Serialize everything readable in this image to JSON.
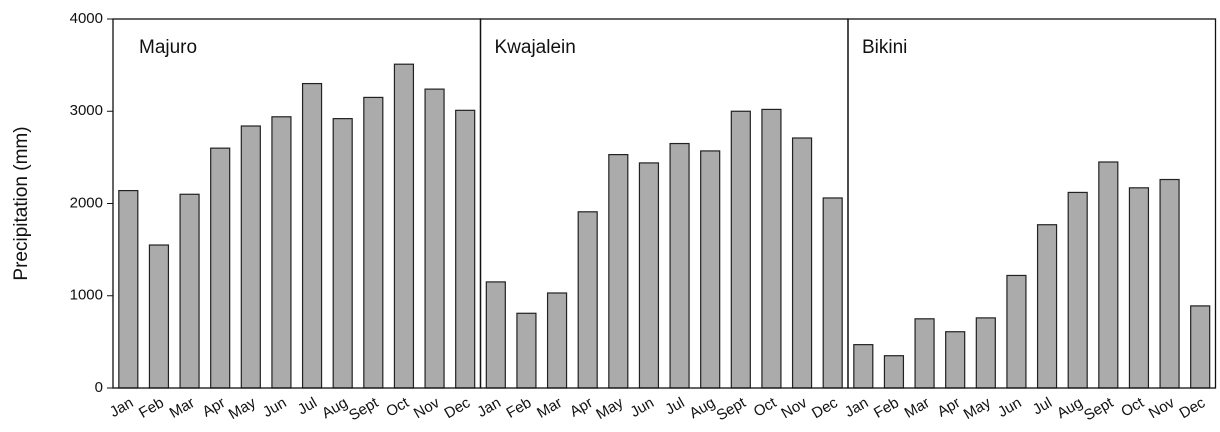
{
  "chart_data": [
    {
      "type": "bar",
      "title": "Majuro",
      "y_label": "Precipitation (mm)",
      "color": "#ababab",
      "categories": [
        "Jan",
        "Feb",
        "Mar",
        "Apr",
        "May",
        "Jun",
        "Jul",
        "Aug",
        "Sept",
        "Oct",
        "Nov",
        "Dec"
      ],
      "values": [
        2140,
        1550,
        2100,
        2600,
        2840,
        2940,
        3300,
        2920,
        3150,
        3510,
        3240,
        3010
      ],
      "ylim": [
        0,
        4000
      ],
      "yticks": [
        0,
        1000,
        2000,
        3000,
        4000
      ]
    },
    {
      "type": "bar",
      "title": "Kwajalein",
      "color": "#ababab",
      "categories": [
        "Jan",
        "Feb",
        "Mar",
        "Apr",
        "May",
        "Jun",
        "Jul",
        "Aug",
        "Sept",
        "Oct",
        "Nov",
        "Dec"
      ],
      "values": [
        1150,
        810,
        1030,
        1910,
        2530,
        2440,
        2650,
        2570,
        3000,
        3020,
        2710,
        2060
      ],
      "ylim": [
        0,
        4000
      ]
    },
    {
      "type": "bar",
      "title": "Bikini",
      "color": "#ababab",
      "categories": [
        "Jan",
        "Feb",
        "Mar",
        "Apr",
        "May",
        "Jun",
        "Jul",
        "Aug",
        "Sept",
        "Oct",
        "Nov",
        "Dec"
      ],
      "values": [
        470,
        350,
        750,
        610,
        760,
        1220,
        1770,
        2120,
        2450,
        2170,
        2260,
        890
      ],
      "ylim": [
        0,
        4000
      ]
    }
  ]
}
